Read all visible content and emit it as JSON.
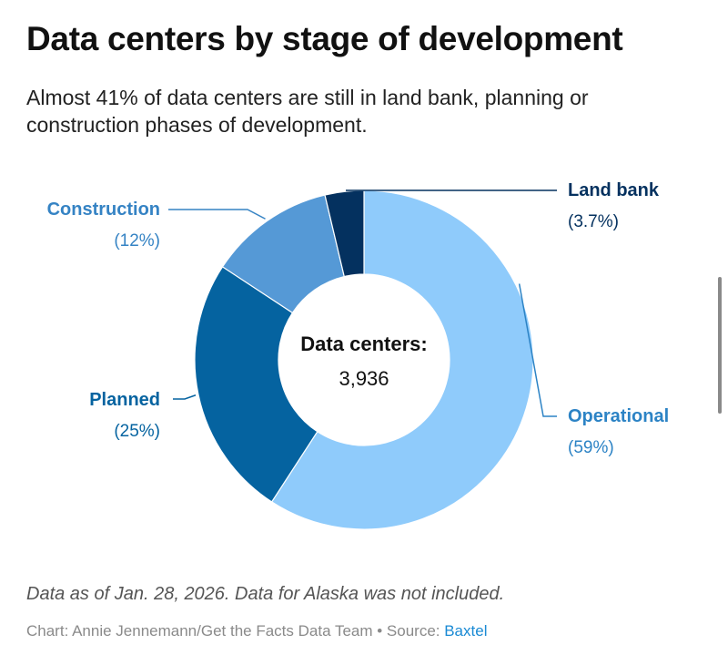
{
  "header": {
    "title": "Data centers by stage of development",
    "subtitle": "Almost 41% of data centers are still in land bank, planning or construction phases of development."
  },
  "chart_data": {
    "type": "pie",
    "variant": "donut",
    "title": "Data centers by stage of development",
    "center_label": "Data centers:",
    "center_value": "3,936",
    "slices": [
      {
        "label": "Operational",
        "value": 59,
        "display": "(59%)",
        "color": "#8fcbfb",
        "label_color": "#2c83c5"
      },
      {
        "label": "Planned",
        "value": 25,
        "display": "(25%)",
        "color": "#0563a0",
        "label_color": "#0563a0"
      },
      {
        "label": "Construction",
        "value": 12,
        "display": "(12%)",
        "color": "#5599d6",
        "label_color": "#3583c4"
      },
      {
        "label": "Land bank",
        "value": 3.7,
        "display": "(3.7%)",
        "color": "#04315f",
        "label_color": "#04315f"
      }
    ],
    "units": "percent"
  },
  "footer": {
    "note": "Data as of Jan. 28, 2026. Data for Alaska was not included.",
    "credit_prefix": "Chart: Annie Jennemann/Get the Facts Data Team • Source: ",
    "source_link": "Baxtel"
  }
}
